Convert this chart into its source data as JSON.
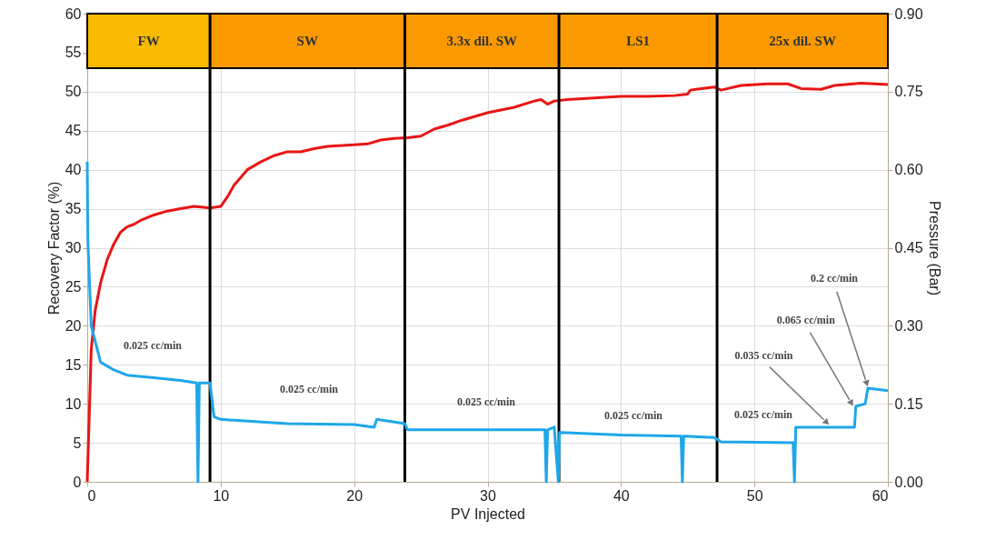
{
  "chart_data": {
    "type": "line",
    "xlabel": "PV Injected",
    "ylabel": "Recovery Factor (%)",
    "y2label": "Pressure (Bar)",
    "xlim": [
      0,
      60
    ],
    "xticks": [
      0,
      10,
      20,
      30,
      40,
      50,
      60
    ],
    "ylim": [
      0,
      60
    ],
    "yticks": [
      0,
      5,
      10,
      15,
      20,
      25,
      30,
      35,
      40,
      45,
      50,
      55,
      60
    ],
    "y2lim": [
      0,
      0.9
    ],
    "y2ticks": [
      {
        "value": 0,
        "label": "0.00"
      },
      {
        "value": 0.15,
        "label": "0.15"
      },
      {
        "value": 0.3,
        "label": "0.30"
      },
      {
        "value": 0.45,
        "label": "0.45"
      },
      {
        "value": 0.6,
        "label": "0.60"
      },
      {
        "value": 0.75,
        "label": "0.75"
      },
      {
        "value": 0.9,
        "label": "0.90"
      }
    ],
    "grid": true,
    "marker": "none",
    "line_style": "solid",
    "series": [
      {
        "color": "#e81515",
        "x": [
          0,
          0.3,
          0.6,
          1,
          1.5,
          2,
          2.5,
          3,
          3.5,
          4,
          5,
          6,
          7,
          8,
          9.2,
          10,
          10.5,
          11,
          12,
          13,
          14,
          15,
          16,
          17,
          18,
          20,
          21,
          22,
          23,
          24,
          25,
          26,
          27,
          28,
          30,
          32,
          33.5,
          34,
          34.5,
          35,
          36,
          38,
          40,
          42,
          44,
          45,
          45.2,
          47,
          47.5,
          49,
          51,
          52.5,
          53.5,
          55,
          56,
          58,
          60
        ],
        "values": [
          0,
          17,
          22,
          25.5,
          28.5,
          30.5,
          32,
          32.7,
          33,
          33.5,
          34.2,
          34.7,
          35,
          35.3,
          35.1,
          35.3,
          36.5,
          38,
          40,
          41,
          41.8,
          42.3,
          42.3,
          42.7,
          43,
          43.2,
          43.3,
          43.8,
          44,
          44.1,
          44.3,
          45.2,
          45.7,
          46.3,
          47.3,
          48,
          48.8,
          49,
          48.4,
          48.8,
          49,
          49.2,
          49.4,
          49.4,
          49.5,
          49.7,
          50.2,
          50.6,
          50.2,
          50.8,
          51,
          51,
          50.4,
          50.3,
          50.8,
          51.1,
          50.9
        ]
      },
      {
        "color": "#1ea7e8",
        "axis": "y2",
        "x": [
          0,
          0.05,
          0.3,
          1,
          2,
          3,
          5,
          7,
          8.2,
          8.3,
          8.4,
          9.2,
          9.5,
          10,
          15,
          20,
          21.5,
          21.7,
          23.8,
          24,
          30,
          34.3,
          34.4,
          34.5,
          35,
          35.3,
          35.4,
          35.5,
          40,
          44.5,
          44.6,
          44.7,
          47,
          47.5,
          52.9,
          53,
          53.1,
          57.5,
          57.6,
          58.3,
          58.5,
          60
        ],
        "values": [
          0.615,
          0.46,
          0.3,
          0.23,
          0.215,
          0.205,
          0.2,
          0.195,
          0.19,
          0,
          0.19,
          0.19,
          0.125,
          0.12,
          0.112,
          0.11,
          0.105,
          0.12,
          0.112,
          0.1,
          0.1,
          0.1,
          0,
          0.1,
          0.105,
          0,
          0.095,
          0.095,
          0.09,
          0.088,
          0,
          0.088,
          0.085,
          0.077,
          0.075,
          0,
          0.105,
          0.105,
          0.145,
          0.15,
          0.18,
          0.175
        ]
      }
    ],
    "ref_lines": [
      {
        "axis": "x",
        "value": 9.2,
        "color": "#000000"
      },
      {
        "axis": "x",
        "value": 23.8,
        "color": "#000000"
      },
      {
        "axis": "x",
        "value": 35.35,
        "color": "#000000"
      },
      {
        "axis": "x",
        "value": 47.2,
        "color": "#000000"
      }
    ],
    "bands": [
      {
        "axis": "x",
        "from": 0,
        "to": 9.2,
        "label": "FW",
        "color": "#f8bb00"
      },
      {
        "axis": "x",
        "from": 9.2,
        "to": 23.8,
        "label": "SW",
        "color": "#fb9a00"
      },
      {
        "axis": "x",
        "from": 23.8,
        "to": 35.35,
        "label": "3.3x dil. SW",
        "color": "#fb9a00"
      },
      {
        "axis": "x",
        "from": 35.35,
        "to": 47.2,
        "label": "LS1",
        "color": "#fb9a00"
      },
      {
        "axis": "x",
        "from": 47.2,
        "to": 60,
        "label": "25x dil. SW",
        "color": "#fb9a00"
      }
    ],
    "annotations": [
      "0.025 cc/min",
      "0.025 cc/min",
      "0.025 cc/min",
      "0.025 cc/min",
      "0.025 cc/min",
      {
        "text": "0.035 cc/min",
        "x": 55.6,
        "y": 7.3
      },
      {
        "text": "0.065 cc/min",
        "x": 57.4,
        "y": 9.7
      },
      {
        "text": "0.2 cc/min",
        "x": 58.5,
        "y": 12.2
      }
    ]
  }
}
